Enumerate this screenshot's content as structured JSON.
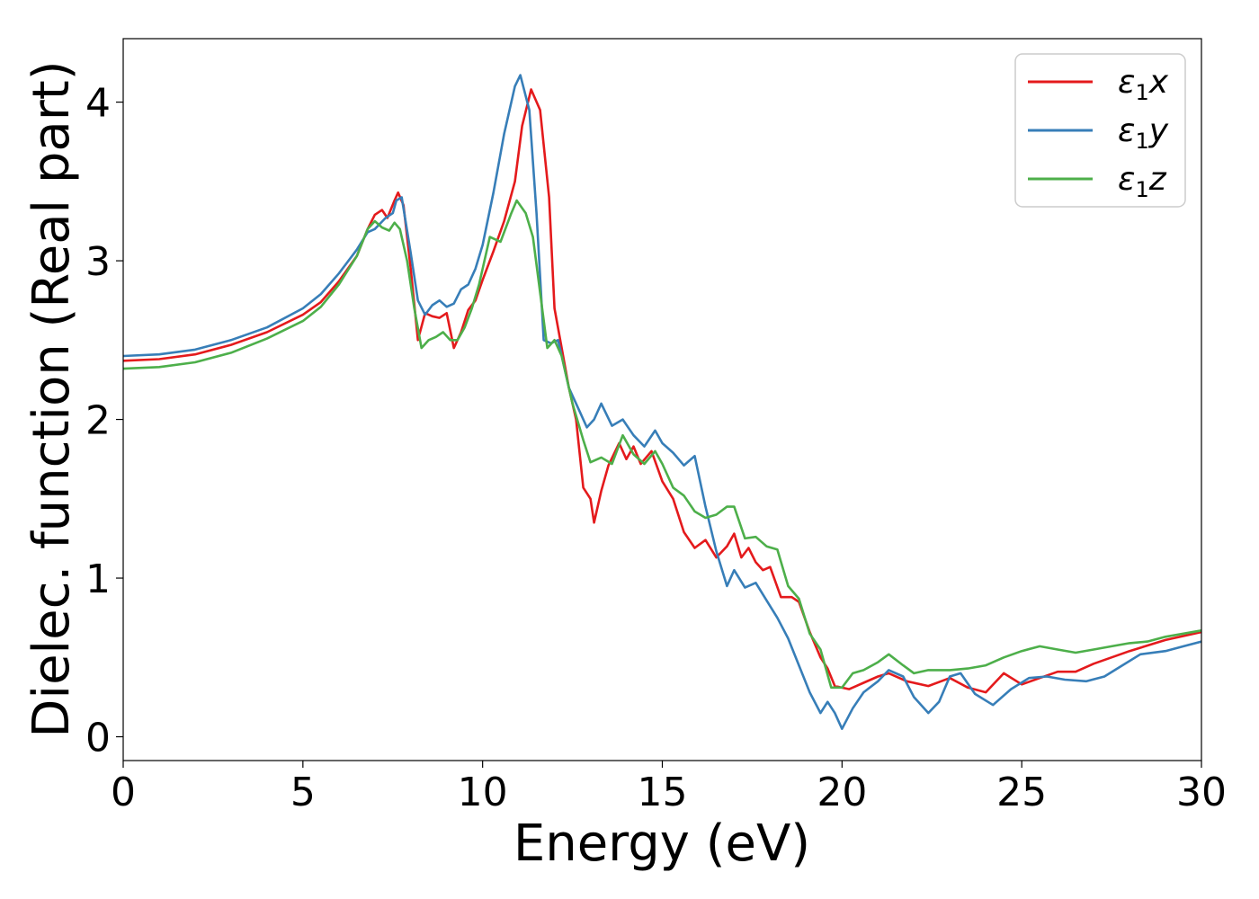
{
  "chart_data": {
    "type": "line",
    "title": "",
    "xlabel": "Energy (eV)",
    "ylabel": "Dielec. function (Real part)",
    "xlim": [
      0,
      30
    ],
    "ylim": [
      -0.15,
      4.4
    ],
    "x_ticks": [
      0,
      5,
      10,
      15,
      20,
      25,
      30
    ],
    "y_ticks": [
      0,
      1,
      2,
      3,
      4
    ],
    "grid": false,
    "legend": {
      "position": "top-right"
    },
    "series": [
      {
        "name": "ε1x",
        "legend_base": "ε",
        "legend_sub": "1",
        "legend_suffix": "x",
        "color": "#e41a1c",
        "points": [
          [
            0,
            2.37
          ],
          [
            1,
            2.38
          ],
          [
            2,
            2.41
          ],
          [
            3,
            2.47
          ],
          [
            4,
            2.55
          ],
          [
            5,
            2.66
          ],
          [
            5.5,
            2.74
          ],
          [
            6,
            2.87
          ],
          [
            6.5,
            3.03
          ],
          [
            6.8,
            3.2
          ],
          [
            7,
            3.29
          ],
          [
            7.2,
            3.32
          ],
          [
            7.35,
            3.27
          ],
          [
            7.55,
            3.38
          ],
          [
            7.65,
            3.43
          ],
          [
            7.8,
            3.35
          ],
          [
            8,
            2.95
          ],
          [
            8.2,
            2.5
          ],
          [
            8.4,
            2.67
          ],
          [
            8.6,
            2.65
          ],
          [
            8.8,
            2.64
          ],
          [
            9.0,
            2.67
          ],
          [
            9.2,
            2.45
          ],
          [
            9.4,
            2.55
          ],
          [
            9.6,
            2.69
          ],
          [
            9.8,
            2.75
          ],
          [
            10,
            2.88
          ],
          [
            10.3,
            3.06
          ],
          [
            10.6,
            3.25
          ],
          [
            10.9,
            3.5
          ],
          [
            11.1,
            3.85
          ],
          [
            11.35,
            4.08
          ],
          [
            11.6,
            3.95
          ],
          [
            11.85,
            3.4
          ],
          [
            12.0,
            2.7
          ],
          [
            12.2,
            2.45
          ],
          [
            12.4,
            2.2
          ],
          [
            12.6,
            2.0
          ],
          [
            12.8,
            1.57
          ],
          [
            13.0,
            1.5
          ],
          [
            13.1,
            1.35
          ],
          [
            13.3,
            1.55
          ],
          [
            13.5,
            1.71
          ],
          [
            13.8,
            1.85
          ],
          [
            14.0,
            1.75
          ],
          [
            14.2,
            1.83
          ],
          [
            14.4,
            1.72
          ],
          [
            14.7,
            1.8
          ],
          [
            15.0,
            1.61
          ],
          [
            15.3,
            1.5
          ],
          [
            15.6,
            1.29
          ],
          [
            15.9,
            1.19
          ],
          [
            16.2,
            1.24
          ],
          [
            16.5,
            1.13
          ],
          [
            16.8,
            1.2
          ],
          [
            17.0,
            1.28
          ],
          [
            17.2,
            1.13
          ],
          [
            17.4,
            1.19
          ],
          [
            17.6,
            1.1
          ],
          [
            17.8,
            1.05
          ],
          [
            18.0,
            1.07
          ],
          [
            18.3,
            0.88
          ],
          [
            18.6,
            0.88
          ],
          [
            18.8,
            0.85
          ],
          [
            19.1,
            0.66
          ],
          [
            19.4,
            0.5
          ],
          [
            19.6,
            0.43
          ],
          [
            19.8,
            0.32
          ],
          [
            20.2,
            0.3
          ],
          [
            20.6,
            0.34
          ],
          [
            21.0,
            0.38
          ],
          [
            21.3,
            0.4
          ],
          [
            21.8,
            0.35
          ],
          [
            22.4,
            0.32
          ],
          [
            23.0,
            0.37
          ],
          [
            23.5,
            0.31
          ],
          [
            24.0,
            0.28
          ],
          [
            24.5,
            0.4
          ],
          [
            25.0,
            0.33
          ],
          [
            25.5,
            0.37
          ],
          [
            26.0,
            0.41
          ],
          [
            26.5,
            0.41
          ],
          [
            27.0,
            0.46
          ],
          [
            28.0,
            0.54
          ],
          [
            29.0,
            0.61
          ],
          [
            30.0,
            0.66
          ]
        ]
      },
      {
        "name": "ε1y",
        "legend_base": "ε",
        "legend_sub": "1",
        "legend_suffix": "y",
        "color": "#377eb8",
        "points": [
          [
            0,
            2.4
          ],
          [
            1,
            2.41
          ],
          [
            2,
            2.44
          ],
          [
            3,
            2.5
          ],
          [
            4,
            2.58
          ],
          [
            5,
            2.7
          ],
          [
            5.5,
            2.79
          ],
          [
            6,
            2.92
          ],
          [
            6.5,
            3.07
          ],
          [
            6.8,
            3.18
          ],
          [
            7.0,
            3.2
          ],
          [
            7.3,
            3.27
          ],
          [
            7.5,
            3.3
          ],
          [
            7.6,
            3.38
          ],
          [
            7.75,
            3.4
          ],
          [
            8.0,
            3.05
          ],
          [
            8.2,
            2.75
          ],
          [
            8.4,
            2.66
          ],
          [
            8.6,
            2.72
          ],
          [
            8.8,
            2.75
          ],
          [
            9.0,
            2.71
          ],
          [
            9.2,
            2.73
          ],
          [
            9.4,
            2.82
          ],
          [
            9.6,
            2.85
          ],
          [
            9.8,
            2.95
          ],
          [
            10,
            3.1
          ],
          [
            10.3,
            3.43
          ],
          [
            10.6,
            3.8
          ],
          [
            10.9,
            4.1
          ],
          [
            11.05,
            4.17
          ],
          [
            11.3,
            3.95
          ],
          [
            11.5,
            3.3
          ],
          [
            11.7,
            2.5
          ],
          [
            11.9,
            2.48
          ],
          [
            12.1,
            2.5
          ],
          [
            12.4,
            2.2
          ],
          [
            12.7,
            2.05
          ],
          [
            12.9,
            1.95
          ],
          [
            13.1,
            2.0
          ],
          [
            13.3,
            2.1
          ],
          [
            13.6,
            1.96
          ],
          [
            13.9,
            2.0
          ],
          [
            14.2,
            1.9
          ],
          [
            14.5,
            1.83
          ],
          [
            14.8,
            1.93
          ],
          [
            15.0,
            1.85
          ],
          [
            15.3,
            1.79
          ],
          [
            15.6,
            1.71
          ],
          [
            15.9,
            1.77
          ],
          [
            16.2,
            1.45
          ],
          [
            16.5,
            1.17
          ],
          [
            16.8,
            0.95
          ],
          [
            17.0,
            1.05
          ],
          [
            17.3,
            0.94
          ],
          [
            17.6,
            0.97
          ],
          [
            17.9,
            0.86
          ],
          [
            18.2,
            0.75
          ],
          [
            18.5,
            0.62
          ],
          [
            18.8,
            0.45
          ],
          [
            19.1,
            0.28
          ],
          [
            19.4,
            0.15
          ],
          [
            19.6,
            0.22
          ],
          [
            19.8,
            0.15
          ],
          [
            20.0,
            0.05
          ],
          [
            20.3,
            0.18
          ],
          [
            20.6,
            0.28
          ],
          [
            21.0,
            0.35
          ],
          [
            21.3,
            0.42
          ],
          [
            21.7,
            0.38
          ],
          [
            22.0,
            0.25
          ],
          [
            22.4,
            0.15
          ],
          [
            22.7,
            0.22
          ],
          [
            23.0,
            0.38
          ],
          [
            23.3,
            0.4
          ],
          [
            23.7,
            0.27
          ],
          [
            24.2,
            0.2
          ],
          [
            24.7,
            0.3
          ],
          [
            25.2,
            0.37
          ],
          [
            25.7,
            0.38
          ],
          [
            26.2,
            0.36
          ],
          [
            26.8,
            0.35
          ],
          [
            27.3,
            0.38
          ],
          [
            27.8,
            0.45
          ],
          [
            28.3,
            0.52
          ],
          [
            29.0,
            0.54
          ],
          [
            29.5,
            0.57
          ],
          [
            30.0,
            0.6
          ]
        ]
      },
      {
        "name": "ε1z",
        "legend_base": "ε",
        "legend_sub": "1",
        "legend_suffix": "z",
        "color": "#4daf4a",
        "points": [
          [
            0,
            2.32
          ],
          [
            1,
            2.33
          ],
          [
            2,
            2.36
          ],
          [
            3,
            2.42
          ],
          [
            4,
            2.51
          ],
          [
            5,
            2.62
          ],
          [
            5.5,
            2.71
          ],
          [
            6,
            2.85
          ],
          [
            6.5,
            3.03
          ],
          [
            6.8,
            3.2
          ],
          [
            7.0,
            3.25
          ],
          [
            7.2,
            3.21
          ],
          [
            7.4,
            3.19
          ],
          [
            7.55,
            3.24
          ],
          [
            7.7,
            3.2
          ],
          [
            7.9,
            3.0
          ],
          [
            8.1,
            2.7
          ],
          [
            8.3,
            2.45
          ],
          [
            8.5,
            2.5
          ],
          [
            8.7,
            2.52
          ],
          [
            8.9,
            2.55
          ],
          [
            9.1,
            2.5
          ],
          [
            9.3,
            2.5
          ],
          [
            9.5,
            2.58
          ],
          [
            9.7,
            2.7
          ],
          [
            9.9,
            2.85
          ],
          [
            10.2,
            3.15
          ],
          [
            10.5,
            3.12
          ],
          [
            10.8,
            3.3
          ],
          [
            10.95,
            3.38
          ],
          [
            11.2,
            3.3
          ],
          [
            11.4,
            3.15
          ],
          [
            11.6,
            2.8
          ],
          [
            11.8,
            2.45
          ],
          [
            12.0,
            2.5
          ],
          [
            12.2,
            2.4
          ],
          [
            12.5,
            2.1
          ],
          [
            12.8,
            1.87
          ],
          [
            13.0,
            1.73
          ],
          [
            13.3,
            1.76
          ],
          [
            13.6,
            1.72
          ],
          [
            13.9,
            1.9
          ],
          [
            14.2,
            1.78
          ],
          [
            14.5,
            1.72
          ],
          [
            14.8,
            1.8
          ],
          [
            15.0,
            1.72
          ],
          [
            15.3,
            1.57
          ],
          [
            15.6,
            1.52
          ],
          [
            15.9,
            1.42
          ],
          [
            16.2,
            1.38
          ],
          [
            16.5,
            1.4
          ],
          [
            16.8,
            1.45
          ],
          [
            17.0,
            1.45
          ],
          [
            17.3,
            1.25
          ],
          [
            17.6,
            1.26
          ],
          [
            17.9,
            1.2
          ],
          [
            18.2,
            1.18
          ],
          [
            18.5,
            0.95
          ],
          [
            18.8,
            0.87
          ],
          [
            19.1,
            0.65
          ],
          [
            19.4,
            0.55
          ],
          [
            19.7,
            0.31
          ],
          [
            20.0,
            0.31
          ],
          [
            20.3,
            0.4
          ],
          [
            20.6,
            0.42
          ],
          [
            21.0,
            0.47
          ],
          [
            21.3,
            0.52
          ],
          [
            21.7,
            0.45
          ],
          [
            22.0,
            0.4
          ],
          [
            22.4,
            0.42
          ],
          [
            23.0,
            0.42
          ],
          [
            23.5,
            0.43
          ],
          [
            24.0,
            0.45
          ],
          [
            24.5,
            0.5
          ],
          [
            25.0,
            0.54
          ],
          [
            25.5,
            0.57
          ],
          [
            26.0,
            0.55
          ],
          [
            26.5,
            0.53
          ],
          [
            27.0,
            0.55
          ],
          [
            27.5,
            0.57
          ],
          [
            28.0,
            0.59
          ],
          [
            28.5,
            0.6
          ],
          [
            29.0,
            0.63
          ],
          [
            29.5,
            0.65
          ],
          [
            30.0,
            0.67
          ]
        ]
      }
    ]
  }
}
